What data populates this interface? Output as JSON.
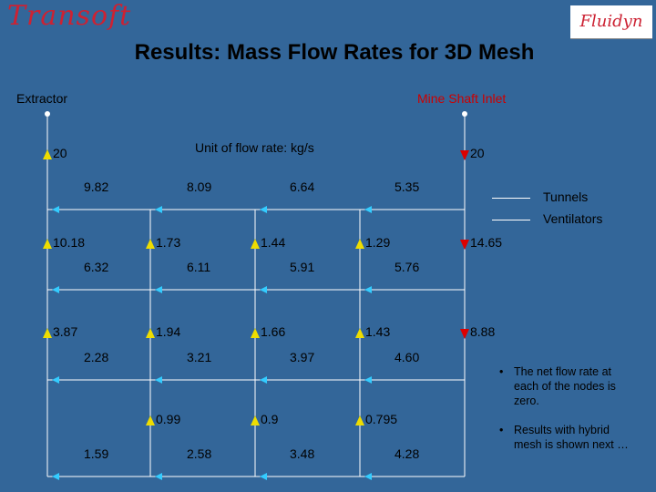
{
  "logos": {
    "left": "Transoft",
    "right": "Fluidyn"
  },
  "title": "Results: Mass Flow Rates for 3D Mesh",
  "labels": {
    "extractor": "Extractor",
    "mine_shaft_inlet": "Mine Shaft Inlet",
    "unit": "Unit of flow rate: kg/s"
  },
  "legend": {
    "tunnels": "Tunnels",
    "ventilators": "Ventilators"
  },
  "vertical_values": [
    [
      "20",
      "",
      "",
      "",
      "20"
    ],
    [
      "10.18",
      "1.73",
      "1.44",
      "1.29",
      "14.65"
    ],
    [
      "3.87",
      "1.94",
      "1.66",
      "1.43",
      "8.88"
    ],
    [
      "",
      "0.99",
      "0.9",
      "0.795",
      ""
    ]
  ],
  "horizontal_values": [
    [
      "9.82",
      "8.09",
      "6.64",
      "5.35"
    ],
    [
      "6.32",
      "6.11",
      "5.91",
      "5.76"
    ],
    [
      "2.28",
      "3.21",
      "3.97",
      "4.60"
    ],
    [
      "1.59",
      "2.58",
      "3.48",
      "4.28"
    ]
  ],
  "notes": [
    "The net flow rate at each of the nodes is zero.",
    "Results with hybrid mesh is shown next …"
  ],
  "colors": {
    "background": "#336699",
    "tunnel_line": "#ffffff",
    "vertical_arrow": "#eedd00",
    "inlet_arrow": "#dd0000",
    "horizontal_arrow": "#33ccff",
    "red_text": "#cc0000"
  }
}
